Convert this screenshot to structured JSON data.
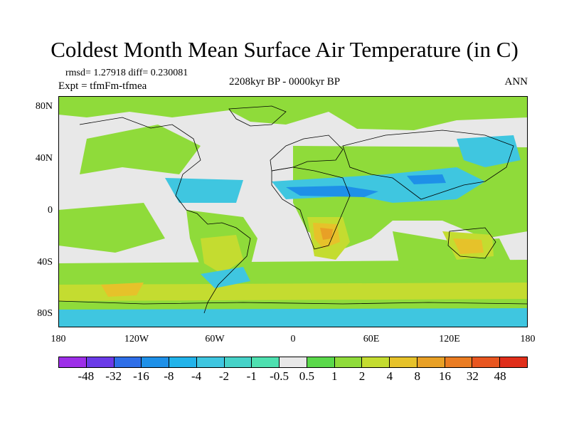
{
  "title": "Coldest Month Mean Surface Air Temperature (in C)",
  "stats": "rmsd= 1.27918 diff= 0.230081",
  "experiment": "Expt = tfmFm-tfmea",
  "period": "2208kyr BP - 0000kyr BP",
  "season": "ANN",
  "lat_labels": [
    "80N",
    "40N",
    "0",
    "40S",
    "80S"
  ],
  "lon_labels": [
    "180",
    "120W",
    "60W",
    "0",
    "60E",
    "120E",
    "180"
  ],
  "colorbar": {
    "labels": [
      "-48",
      "-32",
      "-16",
      "-8",
      "-4",
      "-2",
      "-1",
      "-0.5",
      "0.5",
      "1",
      "2",
      "4",
      "8",
      "16",
      "32",
      "48"
    ],
    "colors": [
      "#9d2ee8",
      "#6a3ae8",
      "#2e6ee8",
      "#1e90e8",
      "#22b3ea",
      "#3fc6e0",
      "#46d2c8",
      "#4ee0b0",
      "#e8e8e8",
      "#5ad84a",
      "#8fdb3a",
      "#c4dc30",
      "#e6c22a",
      "#e8a026",
      "#ea7c22",
      "#e85620",
      "#e02e1a"
    ]
  }
}
